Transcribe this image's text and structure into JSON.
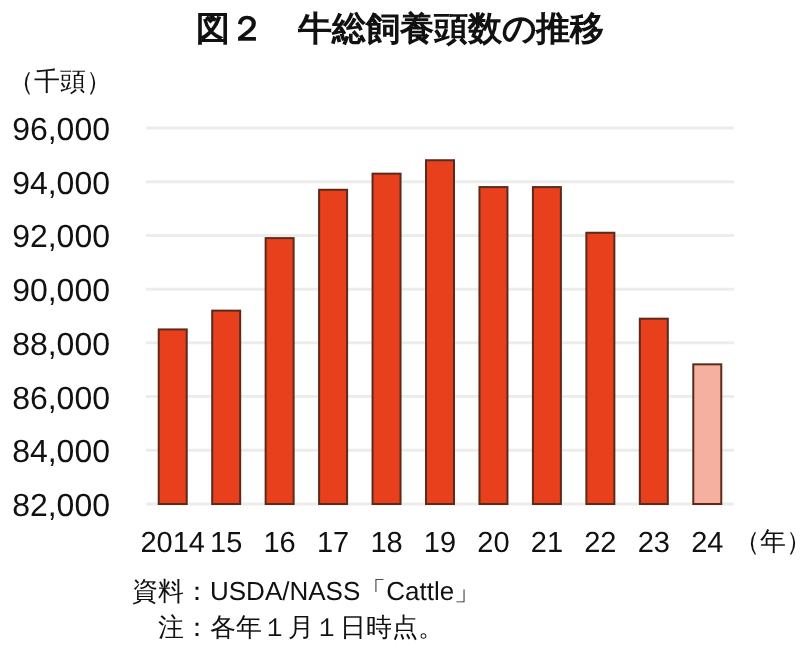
{
  "chart_data": {
    "type": "bar",
    "title": "図２　牛総飼養頭数の推移",
    "ylabel": "（千頭）",
    "xlabel": "（年）",
    "categories": [
      "2014",
      "15",
      "16",
      "17",
      "18",
      "19",
      "20",
      "21",
      "22",
      "23",
      "24"
    ],
    "values": [
      88500,
      89200,
      91900,
      93700,
      94300,
      94800,
      93800,
      93800,
      92100,
      88900,
      87200
    ],
    "colors": [
      "#e8401c",
      "#e8401c",
      "#e8401c",
      "#e8401c",
      "#e8401c",
      "#e8401c",
      "#e8401c",
      "#e8401c",
      "#e8401c",
      "#e8401c",
      "#f5b0a0"
    ],
    "ylim": [
      82000,
      96000
    ],
    "yticks": [
      {
        "value": 82000,
        "label": "82,000"
      },
      {
        "value": 84000,
        "label": "84,000"
      },
      {
        "value": 86000,
        "label": "86,000"
      },
      {
        "value": 88000,
        "label": "88,000"
      },
      {
        "value": 90000,
        "label": "90,000"
      },
      {
        "value": 92000,
        "label": "92,000"
      },
      {
        "value": 94000,
        "label": "94,000"
      },
      {
        "value": 96000,
        "label": "96,000"
      }
    ],
    "grid": "y",
    "annotations": [
      "資料：USDA/NASS「Cattle」",
      "　注：各年１月１日時点。"
    ]
  }
}
